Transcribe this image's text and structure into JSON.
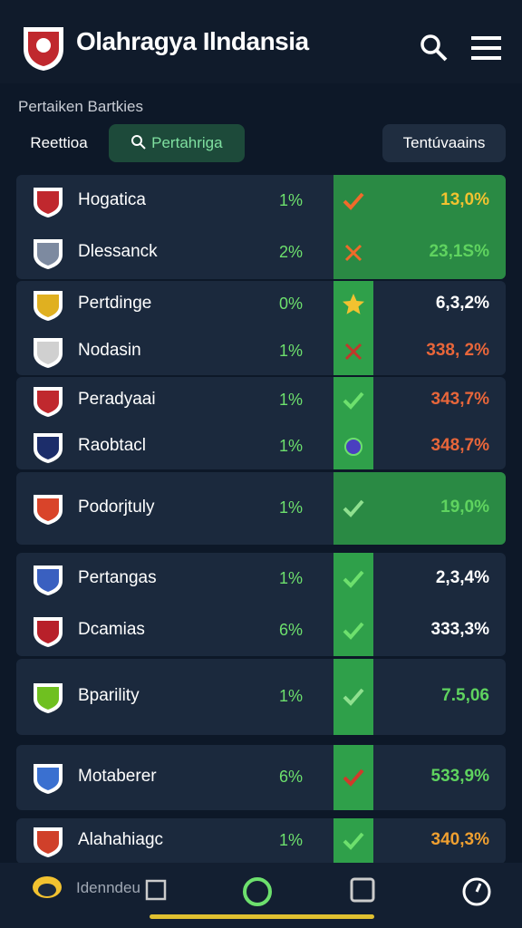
{
  "header": {
    "title": "Olahragya Ilndansia"
  },
  "section_label": "Pertaiken Bartkies",
  "tabs": [
    "Reettioa",
    "Pertahriga",
    "Tentúvaains"
  ],
  "cards": [
    {
      "highlight": true,
      "rows": [
        {
          "name": "Hogatica",
          "pct": "1%",
          "score": "13,0%",
          "marker": "check",
          "marker_color": "#f06a2a",
          "score_color": "#f2c230",
          "logo": "#c0282e"
        },
        {
          "name": "Dlessanck",
          "pct": "2%",
          "score": "23,1S%",
          "marker": "x",
          "marker_color": "#f06a2a",
          "score_color": "#5fd35f",
          "logo": "#7d8aa0"
        }
      ]
    },
    {
      "highlight": false,
      "rows": [
        {
          "name": "Pertdinge",
          "pct": "0%",
          "score": "6,3,2%",
          "marker": "star",
          "marker_color": "#f2c230",
          "score_color": "#ffffff",
          "logo": "#e0b020"
        },
        {
          "name": "Nodasin",
          "pct": "1%",
          "score": "338, 2%",
          "marker": "x",
          "marker_color": "#c0392b",
          "score_color": "#e8663a",
          "logo": "#d0d0d0"
        }
      ]
    },
    {
      "highlight": false,
      "rows": [
        {
          "name": "Peradyaai",
          "pct": "1%",
          "score": "343,7%",
          "marker": "check",
          "marker_color": "#6de06d",
          "score_color": "#e8663a",
          "logo": "#c0282e"
        },
        {
          "name": "Raobtacl",
          "pct": "1%",
          "score": "348,7%",
          "marker": "dot",
          "marker_color": "#4a3fc0",
          "score_color": "#e8663a",
          "logo": "#1c2d6a"
        }
      ]
    },
    {
      "highlight": true,
      "rows": [
        {
          "name": "Podorjtuly",
          "pct": "1%",
          "score": "19,0%",
          "marker": "check",
          "marker_color": "#8fe08f",
          "score_color": "#5fd35f",
          "logo": "#d9442a"
        }
      ]
    },
    {
      "highlight": false,
      "rows": [
        {
          "name": "Pertangas",
          "pct": "1%",
          "score": "2,3,4%",
          "marker": "check",
          "marker_color": "#6de06d",
          "score_color": "#ffffff",
          "logo": "#3a60c0"
        },
        {
          "name": "Dcamias",
          "pct": "6%",
          "score": "333,3%",
          "marker": "check",
          "marker_color": "#6de06d",
          "score_color": "#ffffff",
          "logo": "#b8202a"
        }
      ]
    },
    {
      "highlight": false,
      "rows": [
        {
          "name": "Bparility",
          "pct": "1%",
          "score": "7.5,06",
          "marker": "check",
          "marker_color": "#8fe08f",
          "score_color": "#5fd35f",
          "logo": "#6fc020"
        }
      ]
    },
    {
      "highlight": false,
      "rows": [
        {
          "name": "Motaberer",
          "pct": "6%",
          "score": "533,9%",
          "marker": "check",
          "marker_color": "#d03a2a",
          "score_color": "#5fd35f",
          "logo": "#3a70d0"
        }
      ]
    },
    {
      "highlight": false,
      "rows": [
        {
          "name": "Alahahiagc",
          "pct": "1%",
          "score": "340,3%",
          "marker": "check",
          "marker_color": "#6de06d",
          "score_color": "#f0a030",
          "logo": "#d0402a"
        }
      ]
    }
  ],
  "nav": {
    "label": "Idenndeu"
  }
}
